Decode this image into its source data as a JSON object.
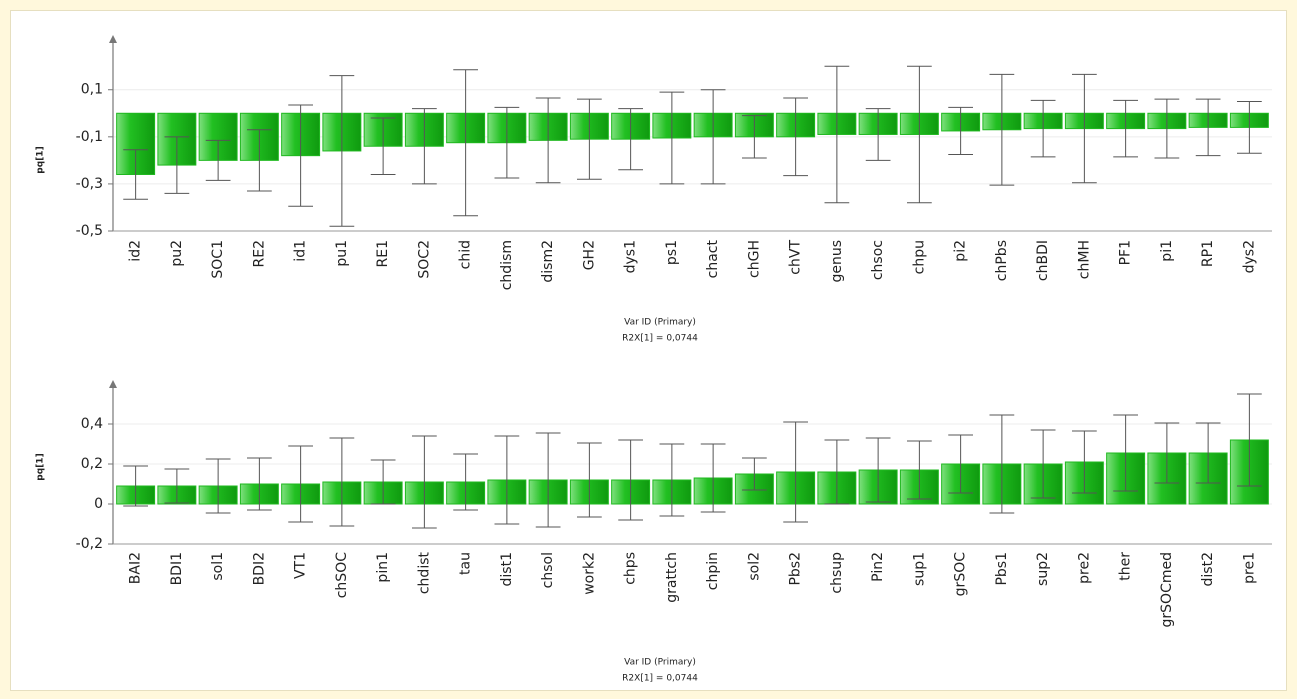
{
  "chart_data": [
    {
      "type": "bar",
      "ylabel": "pq[1]",
      "xlabel": "Var ID (Primary)",
      "annotation": "R2X[1] = 0,0744",
      "color": "#1fb81f",
      "grid": true,
      "categories": [
        "id2",
        "pu2",
        "SOC1",
        "RE2",
        "id1",
        "pu1",
        "RE1",
        "SOC2",
        "chid",
        "chdism",
        "dism2",
        "GH2",
        "dys1",
        "ps1",
        "chact",
        "chGH",
        "chVT",
        "genus",
        "chsoc",
        "chpu",
        "pi2",
        "chPbs",
        "chBDI",
        "chMH",
        "PF1",
        "pi1",
        "RP1",
        "dys2"
      ],
      "values": [
        -0.26,
        -0.22,
        -0.2,
        -0.2,
        -0.18,
        -0.16,
        -0.14,
        -0.14,
        -0.125,
        -0.125,
        -0.115,
        -0.11,
        -0.11,
        -0.105,
        -0.1,
        -0.1,
        -0.1,
        -0.09,
        -0.09,
        -0.09,
        -0.075,
        -0.07,
        -0.065,
        -0.065,
        -0.065,
        -0.065,
        -0.06,
        -0.06
      ],
      "errors": [
        0.105,
        0.12,
        0.085,
        0.13,
        0.215,
        0.32,
        0.12,
        0.16,
        0.31,
        0.15,
        0.18,
        0.17,
        0.13,
        0.195,
        0.2,
        0.09,
        0.165,
        0.29,
        0.11,
        0.29,
        0.1,
        0.235,
        0.12,
        0.23,
        0.12,
        0.125,
        0.12,
        0.11
      ],
      "ylim": [
        -0.5,
        0.29
      ],
      "yticks": [
        {
          "value": 0.1,
          "label": "0,1"
        },
        {
          "value": -0.1,
          "label": "-0,1"
        },
        {
          "value": -0.3,
          "label": "-0,3"
        },
        {
          "value": -0.5,
          "label": "-0,5"
        }
      ]
    },
    {
      "type": "bar",
      "ylabel": "pq[1]",
      "xlabel": "Var ID (Primary)",
      "annotation": "R2X[1] = 0,0744",
      "color": "#1fb81f",
      "grid": true,
      "categories": [
        "BAI2",
        "BDI1",
        "sol1",
        "BDI2",
        "VT1",
        "chSOC",
        "pin1",
        "chdist",
        "tau",
        "dist1",
        "chsol",
        "work2",
        "chps",
        "grattch",
        "chpin",
        "sol2",
        "Pbs2",
        "chsup",
        "Pin2",
        "sup1",
        "grSOC",
        "Pbs1",
        "sup2",
        "pre2",
        "ther",
        "grSOCmed",
        "dist2",
        "pre1"
      ],
      "values": [
        0.09,
        0.09,
        0.09,
        0.1,
        0.1,
        0.11,
        0.11,
        0.11,
        0.11,
        0.12,
        0.12,
        0.12,
        0.12,
        0.12,
        0.13,
        0.15,
        0.16,
        0.16,
        0.17,
        0.17,
        0.2,
        0.2,
        0.2,
        0.21,
        0.255,
        0.255,
        0.255,
        0.32
      ],
      "errors": [
        0.1,
        0.085,
        0.135,
        0.13,
        0.19,
        0.22,
        0.11,
        0.23,
        0.14,
        0.22,
        0.235,
        0.185,
        0.2,
        0.18,
        0.17,
        0.08,
        0.25,
        0.16,
        0.16,
        0.145,
        0.145,
        0.245,
        0.17,
        0.155,
        0.19,
        0.15,
        0.15,
        0.23
      ],
      "ylim": [
        -0.2,
        0.57
      ],
      "yticks": [
        {
          "value": 0.4,
          "label": "0,4"
        },
        {
          "value": 0.2,
          "label": "0,2"
        },
        0,
        {
          "value": -0.2,
          "label": "-0,2"
        }
      ]
    }
  ]
}
